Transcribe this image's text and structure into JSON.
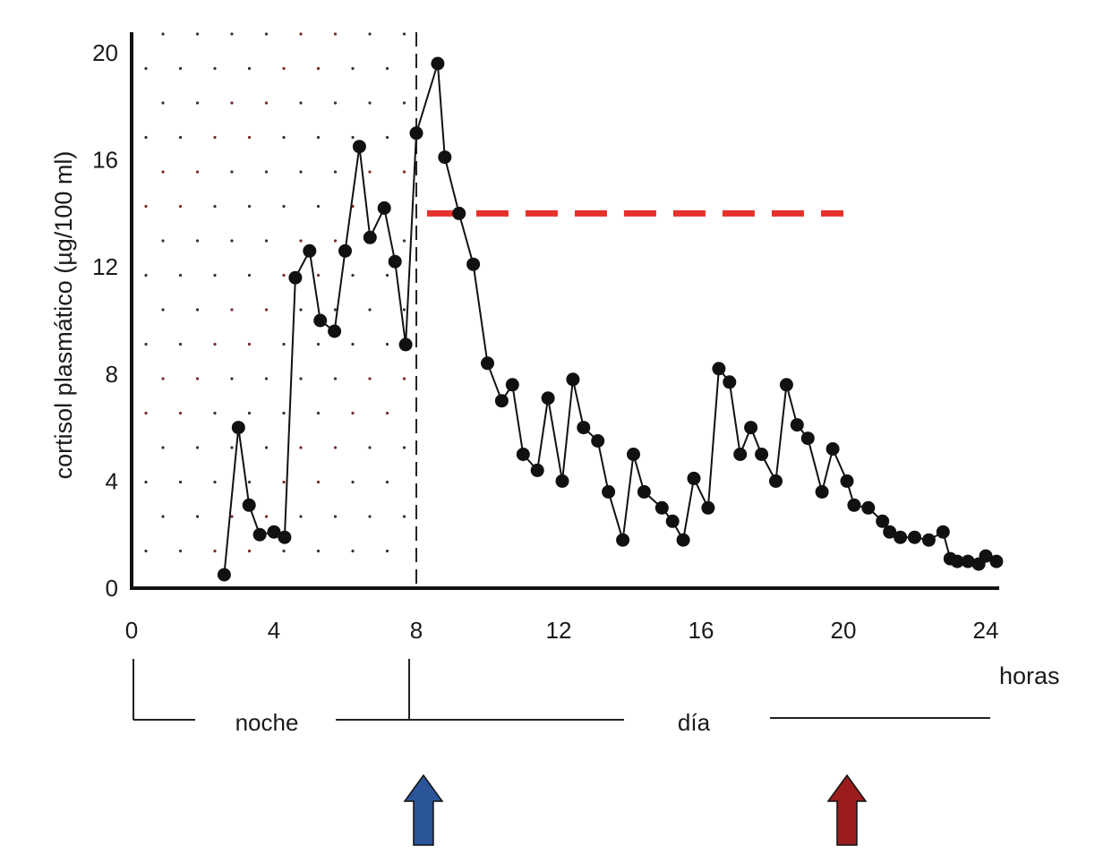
{
  "chart_data": {
    "type": "line",
    "ylabel": "cortisol plasmático (µg/100 ml)",
    "xlabel": "horas",
    "xlim": [
      0,
      24
    ],
    "ylim": [
      0,
      20
    ],
    "x_ticks": [
      "0",
      "4",
      "8",
      "12",
      "16",
      "20",
      "24"
    ],
    "y_ticks": [
      "0",
      "4",
      "8",
      "12",
      "16",
      "20"
    ],
    "periods": {
      "night": "noche",
      "day": "día"
    },
    "night_shading_until_hour": 8,
    "series": [
      {
        "points": [
          [
            2.6,
            0.5
          ],
          [
            3.0,
            6.0
          ],
          [
            3.3,
            3.1
          ],
          [
            3.6,
            2.0
          ],
          [
            4.0,
            2.1
          ],
          [
            4.3,
            1.9
          ],
          [
            4.6,
            11.6
          ],
          [
            5.0,
            12.6
          ],
          [
            5.3,
            10.0
          ],
          [
            5.7,
            9.6
          ],
          [
            6.0,
            12.6
          ],
          [
            6.4,
            16.5
          ],
          [
            6.7,
            13.1
          ],
          [
            7.1,
            14.2
          ],
          [
            7.4,
            12.2
          ],
          [
            7.7,
            9.1
          ],
          [
            8.0,
            17.0
          ],
          [
            8.6,
            19.6
          ],
          [
            8.8,
            16.1
          ],
          [
            9.2,
            14.0
          ],
          [
            9.6,
            12.1
          ],
          [
            10.0,
            8.4
          ],
          [
            10.4,
            7.0
          ],
          [
            10.7,
            7.6
          ],
          [
            11.0,
            5.0
          ],
          [
            11.4,
            4.4
          ],
          [
            11.7,
            7.1
          ],
          [
            12.1,
            4.0
          ],
          [
            12.4,
            7.8
          ],
          [
            12.7,
            6.0
          ],
          [
            13.1,
            5.5
          ],
          [
            13.4,
            3.6
          ],
          [
            13.8,
            1.8
          ],
          [
            14.1,
            5.0
          ],
          [
            14.4,
            3.6
          ],
          [
            14.9,
            3.0
          ],
          [
            15.2,
            2.5
          ],
          [
            15.5,
            1.8
          ],
          [
            15.8,
            4.1
          ],
          [
            16.2,
            3.0
          ],
          [
            16.5,
            8.2
          ],
          [
            16.8,
            7.7
          ],
          [
            17.1,
            5.0
          ],
          [
            17.4,
            6.0
          ],
          [
            17.7,
            5.0
          ],
          [
            18.1,
            4.0
          ],
          [
            18.4,
            7.6
          ],
          [
            18.7,
            6.1
          ],
          [
            19.0,
            5.6
          ],
          [
            19.4,
            3.6
          ],
          [
            19.7,
            5.2
          ],
          [
            20.1,
            4.0
          ],
          [
            20.3,
            3.1
          ],
          [
            20.7,
            3.0
          ],
          [
            21.1,
            2.5
          ],
          [
            21.3,
            2.1
          ],
          [
            21.6,
            1.9
          ],
          [
            22.0,
            1.9
          ],
          [
            22.4,
            1.8
          ],
          [
            22.8,
            2.1
          ],
          [
            23.0,
            1.1
          ],
          [
            23.2,
            1.0
          ],
          [
            23.5,
            1.0
          ],
          [
            23.8,
            0.9
          ],
          [
            24.0,
            1.2
          ],
          [
            24.3,
            1.0
          ]
        ]
      }
    ],
    "reference_line": {
      "value": 14.0,
      "x_start": 8.3,
      "x_end": 20.0,
      "style": "dashed",
      "color": "#e5312b"
    },
    "markers": [
      {
        "name": "blue-arrow",
        "hour": 8.2,
        "color": "#2a5599"
      },
      {
        "name": "red-arrow",
        "hour": 20.1,
        "color": "#9b1c1c"
      }
    ]
  }
}
